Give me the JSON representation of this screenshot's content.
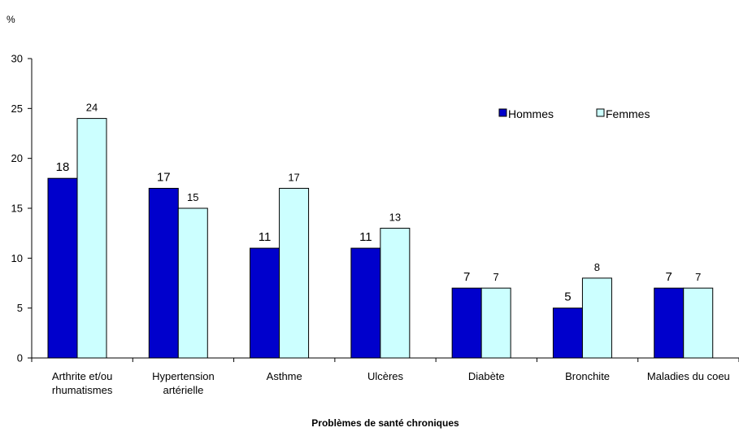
{
  "chart_data": {
    "type": "bar",
    "categories": [
      "Arthrite et/ou\nrhumatismes",
      "Hypertension\nartérielle",
      "Asthme",
      "Ulcères",
      "Diabète",
      "Bronchite",
      "Maladies du coeu"
    ],
    "series": [
      {
        "name": "Hommes",
        "color": "#0000cc",
        "values": [
          18,
          17,
          11,
          11,
          7,
          5,
          7
        ]
      },
      {
        "name": "Femmes",
        "color": "#ccffff",
        "values": [
          24,
          15,
          17,
          13,
          7,
          8,
          7
        ]
      }
    ],
    "yticks": [
      "0",
      "5",
      "10",
      "15",
      "20",
      "25",
      "30"
    ],
    "ylim": [
      0,
      30
    ],
    "ylabel": "%",
    "xlabel": "Problèmes de santé chroniques",
    "grid": false,
    "legend_position": "top-right"
  }
}
